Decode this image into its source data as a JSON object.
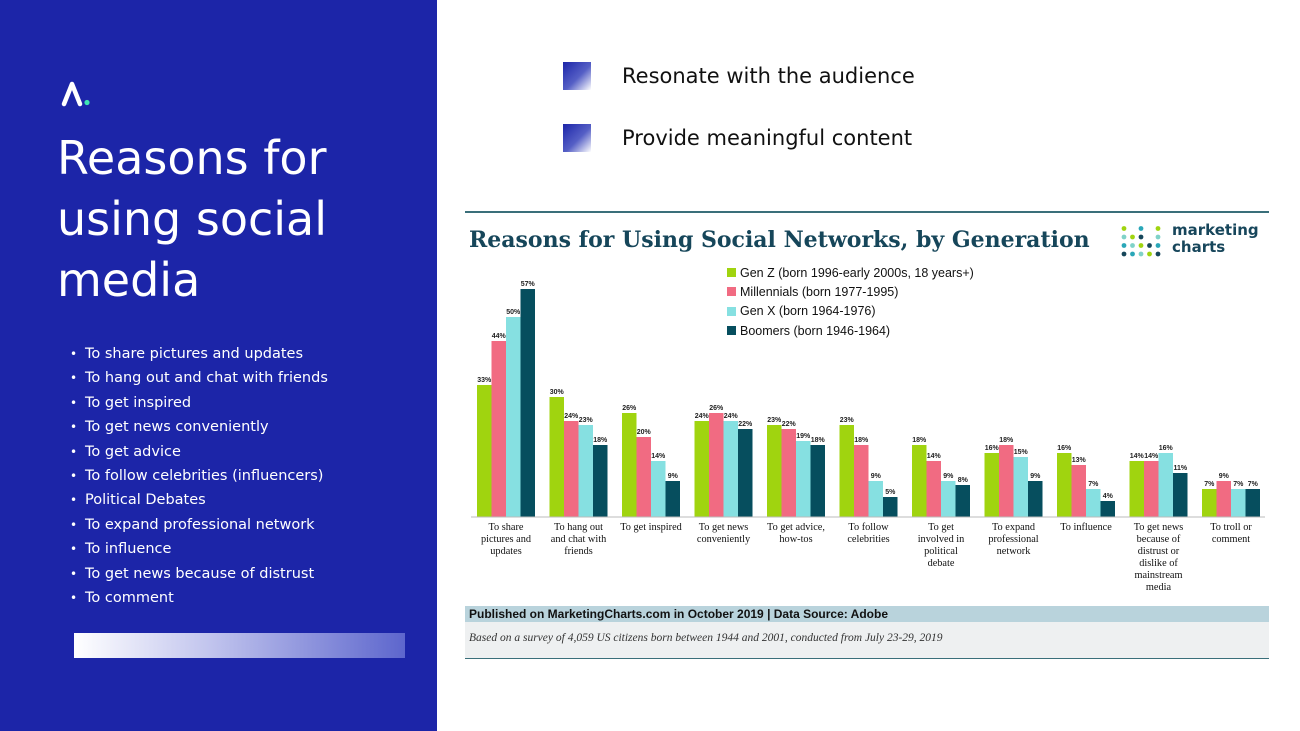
{
  "slide": {
    "title": "Reasons for using social media",
    "bullets": [
      "To share pictures and updates",
      "To hang out and chat with friends",
      "To get inspired",
      "To get news conveniently",
      "To get advice",
      "To follow celebrities (influencers)",
      "Political Debates",
      "To expand professional network",
      "To influence",
      "To get news because of distrust",
      "To comment"
    ],
    "points": [
      "Resonate with the audience",
      "Provide meaningful content"
    ],
    "logo_icon": "logo-caret-icon"
  },
  "colors": {
    "panel": "#1c25a8",
    "gen_z": "#a0d40f",
    "millennials": "#f16b82",
    "gen_x": "#86e0e1",
    "boomers": "#064e5e"
  },
  "chart_data": {
    "type": "bar",
    "title": "Reasons for Using Social Networks, by Generation",
    "brand_line1": "marketing",
    "brand_line2": "charts",
    "legend_placement": "top-center",
    "categories": [
      [
        "To share",
        "pictures and",
        "updates"
      ],
      [
        "To hang out",
        "and chat with",
        "friends"
      ],
      [
        "To get inspired"
      ],
      [
        "To get news",
        "conveniently"
      ],
      [
        "To get advice,",
        "how-tos"
      ],
      [
        "To follow",
        "celebrities"
      ],
      [
        "To get",
        "involved in",
        "political",
        "debate"
      ],
      [
        "To expand",
        "professional",
        "network"
      ],
      [
        "To influence"
      ],
      [
        "To get news",
        "because of",
        "distrust or",
        "dislike of",
        "mainstream",
        "media"
      ],
      [
        "To troll or",
        "comment"
      ]
    ],
    "series": [
      {
        "name": "Gen Z (born 1996-early 2000s, 18 years+)",
        "color": "#a0d40f",
        "values": [
          33,
          30,
          26,
          24,
          23,
          23,
          18,
          16,
          16,
          14,
          7
        ]
      },
      {
        "name": "Millennials (born 1977-1995)",
        "color": "#f16b82",
        "values": [
          44,
          24,
          20,
          26,
          22,
          18,
          14,
          18,
          13,
          14,
          9
        ]
      },
      {
        "name": "Gen X (born 1964-1976)",
        "color": "#86e0e1",
        "values": [
          50,
          23,
          14,
          24,
          19,
          9,
          9,
          15,
          7,
          16,
          7
        ]
      },
      {
        "name": "Boomers (born 1946-1964)",
        "color": "#064e5e",
        "values": [
          57,
          18,
          9,
          22,
          18,
          5,
          8,
          9,
          4,
          11,
          7
        ]
      }
    ],
    "value_suffix": "%",
    "ylim": [
      0,
      60
    ],
    "grid": false,
    "source": "Published on MarketingCharts.com in October 2019 | Data Source: Adobe",
    "note": "Based on a survey of 4,059 US citizens born between 1944 and 2001, conducted from July 23-29, 2019"
  }
}
